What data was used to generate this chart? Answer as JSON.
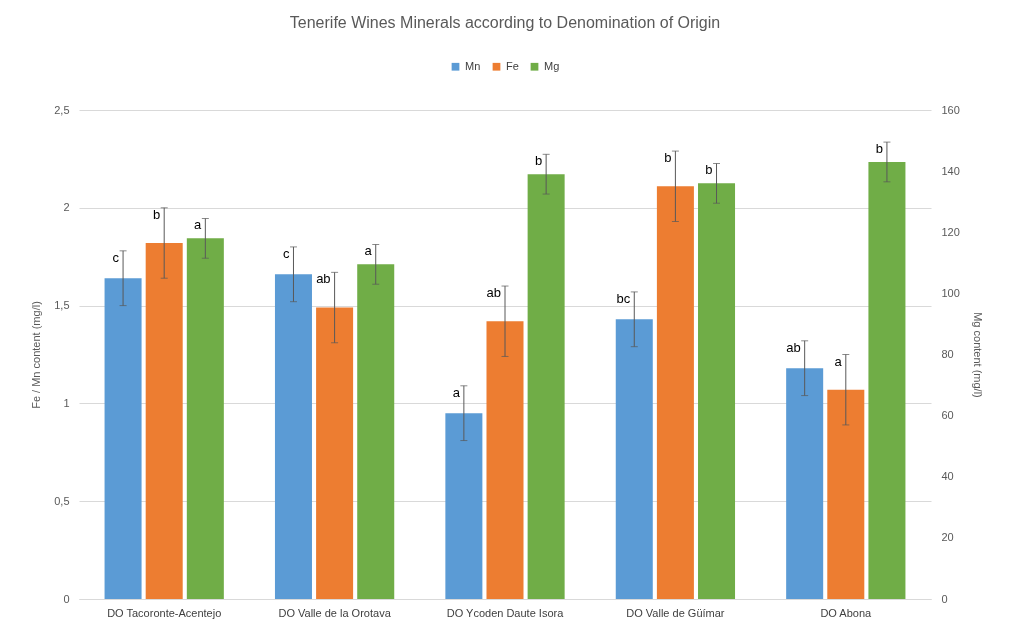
{
  "chart_data": {
    "type": "bar",
    "title": "Tenerife Wines Minerals according to Denomination of Origin",
    "categories": [
      "DO Tacoronte-Acentejo",
      "DO Valle de la Orotava",
      "DO Ycoden Daute Isora",
      "DO Valle de Güímar",
      "DO Abona"
    ],
    "ylabel": "Fe / Mn content (mg/l)",
    "y2label": "Mg content (mg/l)",
    "series": [
      {
        "name": "Mn",
        "color": "#5b9bd5",
        "values": [
          1.64,
          1.66,
          0.95,
          1.43,
          1.18
        ],
        "errors": [
          0.14,
          0.14,
          0.14,
          0.14,
          0.14
        ],
        "value_labels": [
          "c",
          "c",
          "a",
          "bc",
          "ab"
        ]
      },
      {
        "name": "Fe",
        "color": "#ed7d31",
        "values": [
          1.82,
          1.49,
          1.42,
          2.11,
          1.07
        ],
        "errors": [
          0.18,
          0.18,
          0.18,
          0.18,
          0.18
        ],
        "value_labels": [
          "b",
          "ab",
          "ab",
          "b",
          "a"
        ]
      },
      {
        "name": "Mg",
        "color": "#70ad47",
        "axis": "y2",
        "values": [
          118,
          109.5,
          139,
          136,
          143
        ],
        "errors": [
          6.5,
          6.5,
          6.5,
          6.5,
          6.5
        ],
        "value_labels": [
          "a",
          "a",
          "b",
          "b",
          "b"
        ]
      }
    ],
    "ylim": [
      0,
      2.5
    ],
    "yticks": [
      0,
      {
        "value": 0.5,
        "label": "0,5"
      },
      1,
      {
        "value": 1.5,
        "label": "1,5"
      },
      2,
      {
        "value": 2.5,
        "label": "2,5"
      }
    ],
    "y2lim": [
      0,
      160
    ],
    "y2ticks": [
      0,
      20,
      40,
      60,
      80,
      100,
      120,
      140,
      160
    ],
    "grid": "y",
    "legend": "top"
  }
}
